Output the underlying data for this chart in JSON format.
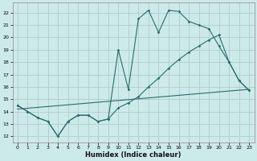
{
  "xlabel": "Humidex (Indice chaleur)",
  "bg_color": "#cdeaea",
  "grid_color": "#b0cccc",
  "line_color": "#2a6b6b",
  "xlim": [
    -0.5,
    23.5
  ],
  "ylim": [
    11.5,
    22.8
  ],
  "yticks": [
    12,
    13,
    14,
    15,
    16,
    17,
    18,
    19,
    20,
    21,
    22
  ],
  "xticks": [
    0,
    1,
    2,
    3,
    4,
    5,
    6,
    7,
    8,
    9,
    10,
    11,
    12,
    13,
    14,
    15,
    16,
    17,
    18,
    19,
    20,
    21,
    22,
    23
  ],
  "line1_x": [
    0,
    1,
    2,
    3,
    4,
    5,
    6,
    7,
    8,
    9,
    10,
    11,
    12,
    13,
    14,
    15,
    16,
    17,
    18,
    19,
    20,
    21,
    22,
    23
  ],
  "line1_y": [
    14.5,
    14.0,
    13.5,
    13.2,
    12.0,
    13.2,
    13.7,
    13.7,
    13.2,
    13.4,
    14.3,
    14.7,
    15.2,
    16.0,
    16.7,
    17.5,
    18.2,
    18.8,
    19.3,
    19.8,
    20.2,
    18.0,
    16.5,
    15.7
  ],
  "line2_x": [
    0,
    1,
    2,
    3,
    4,
    5,
    6,
    7,
    8,
    9,
    10,
    11,
    12,
    13,
    14,
    15,
    16,
    17,
    18,
    19,
    20,
    21,
    22,
    23
  ],
  "line2_y": [
    14.5,
    14.0,
    13.5,
    13.2,
    12.0,
    13.2,
    13.7,
    13.7,
    13.2,
    13.4,
    19.0,
    15.8,
    21.5,
    22.2,
    20.4,
    22.2,
    22.1,
    21.3,
    21.0,
    20.7,
    19.3,
    18.0,
    16.5,
    15.7
  ],
  "line3_x": [
    0,
    23
  ],
  "line3_y": [
    14.2,
    15.8
  ]
}
